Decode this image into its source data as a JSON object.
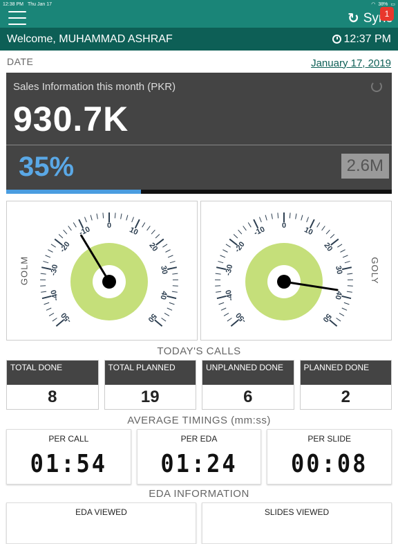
{
  "status_bar": {
    "time": "12:38 PM",
    "date": "Thu Jan 17",
    "battery": "38%"
  },
  "header": {
    "sync_label": "Sync",
    "badge_count": "1"
  },
  "welcome": {
    "text": "Welcome, MUHAMMAD ASHRAF",
    "time": "12:37 PM"
  },
  "date": {
    "label": "DATE",
    "value": "January 17, 2019"
  },
  "sales": {
    "title": "Sales Information this month (PKR)",
    "amount": "930.7K",
    "percent": "35%",
    "target": "2.6M",
    "progress_fraction": 0.35
  },
  "gauges": [
    {
      "label": "GOLM",
      "value": -12,
      "ticks": [
        "-50",
        "-40",
        "-30",
        "-20",
        "-10",
        "0",
        "10",
        "20",
        "30",
        "40",
        "50"
      ]
    },
    {
      "label": "GOLY",
      "value": 38,
      "ticks": [
        "-50",
        "-40",
        "-30",
        "-20",
        "-10",
        "0",
        "10",
        "20",
        "30",
        "40",
        "50"
      ]
    }
  ],
  "calls": {
    "title": "TODAY'S CALLS",
    "items": [
      {
        "label": "TOTAL DONE",
        "value": "8"
      },
      {
        "label": "TOTAL PLANNED",
        "value": "19"
      },
      {
        "label": "UNPLANNED DONE",
        "value": "6"
      },
      {
        "label": "PLANNED DONE",
        "value": "2"
      }
    ]
  },
  "timings": {
    "title": "AVERAGE TIMINGS (mm:ss)",
    "items": [
      {
        "label": "PER CALL",
        "value": "01:54"
      },
      {
        "label": "PER EDA",
        "value": "01:24"
      },
      {
        "label": "PER SLIDE",
        "value": "00:08"
      }
    ]
  },
  "eda": {
    "title": "EDA INFORMATION",
    "items": [
      {
        "label": "EDA VIEWED"
      },
      {
        "label": "SLIDES VIEWED"
      }
    ]
  },
  "colors": {
    "primary": "#1a8578",
    "dark": "#0d5f56",
    "accent_blue": "#5aa8e6",
    "gauge_green": "#c5df7a",
    "badge": "#e8372c"
  }
}
